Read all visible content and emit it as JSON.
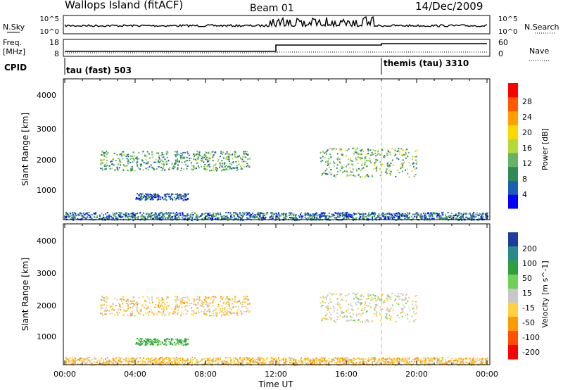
{
  "header": {
    "station": "Wallops Island (fitACF)",
    "beam": "Beam 01",
    "date": "14/Dec/2009"
  },
  "noise_panel": {
    "left_label": "N.Sky",
    "left_ticks": [
      "10^5",
      "10^0"
    ],
    "right_label": "N.Search",
    "right_ticks": [
      "10^5",
      "10^0"
    ]
  },
  "freq_panel": {
    "left_label_1": "Freq.",
    "left_label_2": "[MHz]",
    "left_ticks": [
      "18",
      "8"
    ],
    "right_label": "Nave",
    "right_ticks": [
      "60",
      "0"
    ]
  },
  "cpid": {
    "label": "CPID",
    "segments": [
      {
        "start_hour": 0,
        "text": "tau (fast) 503"
      },
      {
        "start_hour": 18,
        "text": "themis (tau) 3310"
      }
    ]
  },
  "x_axis": {
    "label": "Time UT",
    "ticks": [
      "00:00",
      "04:00",
      "08:00",
      "12:00",
      "16:00",
      "20:00",
      "00:00"
    ]
  },
  "power_panel": {
    "ylabel": "Slant Range [km]",
    "yticks": [
      "1000",
      "2000",
      "3000",
      "4000"
    ],
    "colorbar_label": "Power [dB]",
    "colorbar_ticks": [
      "4",
      "8",
      "12",
      "16",
      "20",
      "24",
      "28"
    ],
    "colors": [
      "#0000ff",
      "#1a5fb4",
      "#2e8b57",
      "#66b266",
      "#b5d93a",
      "#ffd700",
      "#ff9f00",
      "#ff5a00",
      "#ff0000"
    ]
  },
  "velocity_panel": {
    "ylabel": "Slant Range [km]",
    "yticks": [
      "1000",
      "2000",
      "3000",
      "4000"
    ],
    "colorbar_label": "Velocity [m s^-1]",
    "colorbar_ticks": [
      "200",
      "100",
      "50",
      "15",
      "-15",
      "-50",
      "-100",
      "-200"
    ],
    "colors": [
      "#1e3ca0",
      "#2a8a8a",
      "#2e9e3e",
      "#6fd05a",
      "#c8c8c8",
      "#ffd040",
      "#ff9a00",
      "#ff5000",
      "#ff0000"
    ]
  },
  "chart_data": {
    "type": "heatmap",
    "x_range_hours": [
      0,
      24
    ],
    "y_range_km": [
      180,
      4500
    ],
    "regions": [
      {
        "name": "morning-echo",
        "t0": 2.0,
        "t1": 10.5,
        "r0": 1700,
        "r1": 2300,
        "power": 12,
        "velocity": -30
      },
      {
        "name": "evening-echo",
        "t0": 14.5,
        "t1": 20.0,
        "r0": 1500,
        "r1": 2400,
        "power": 14,
        "velocity": -5
      },
      {
        "name": "near-range",
        "t0": 0.0,
        "t1": 24.0,
        "r0": 180,
        "r1": 420,
        "power": 8,
        "velocity": -40
      },
      {
        "name": "low-range-patch",
        "t0": 4.0,
        "t1": 7.0,
        "r0": 800,
        "r1": 1000,
        "power": 6,
        "velocity": 60
      }
    ]
  }
}
